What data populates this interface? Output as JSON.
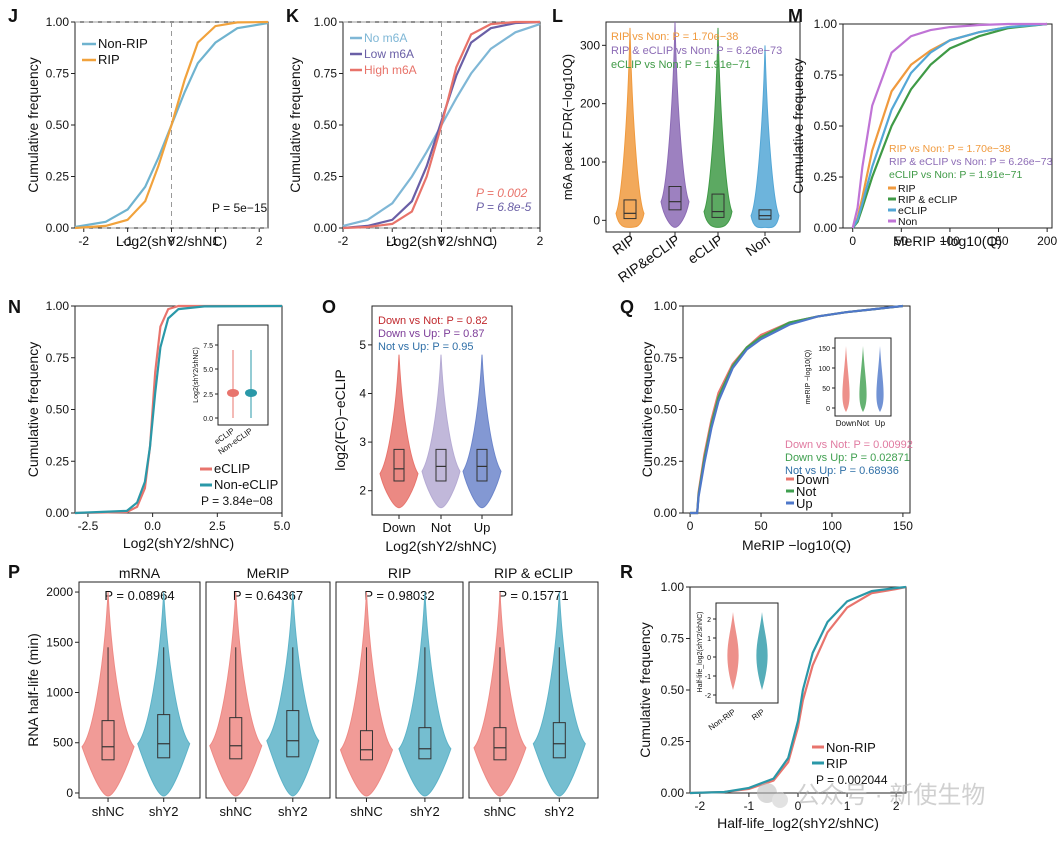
{
  "colors": {
    "nonrip": "#6fb3cf",
    "rip": "#f1a23c",
    "nom6a": "#7fb7d6",
    "lowm6a": "#6a5fa6",
    "highm6a": "#e8736a",
    "lorange": "#f09a3e",
    "lpurple": "#8c6bb5",
    "lgreen": "#3f9a46",
    "lblue": "#54a7d6",
    "red": "#e8746d",
    "teal": "#2a98a8",
    "violet": "#b6abd4",
    "bluev": "#6d86cb",
    "qgreen": "#3f9f4f",
    "qblue": "#4e77c9",
    "vred": "#ee8a85",
    "vteal": "#5db3c8",
    "pink": "#e07aa0",
    "darkred": "#c0282d",
    "purple": "#7c3c98",
    "steel": "#2f6fa7"
  },
  "watermark": "公众号 · 新使生物",
  "chart_data": [
    {
      "panel": "J",
      "type": "line",
      "title": "",
      "xlabel": "Log2(shY2/shNC)",
      "ylabel": "Cumulative frequency",
      "xlim": [
        -2.2,
        2.2
      ],
      "ylim": [
        0,
        1
      ],
      "xticks": [
        "-2",
        "-1",
        "0",
        "1",
        "2"
      ],
      "yticks": [
        "0.00",
        "0.25",
        "0.50",
        "0.75",
        "1.00"
      ],
      "series": [
        {
          "name": "Non-RIP",
          "color": "#6fb3cf",
          "x": [
            -2.2,
            -1.5,
            -1,
            -0.6,
            -0.3,
            0,
            0.3,
            0.6,
            1,
            1.5,
            2.2
          ],
          "y": [
            0.005,
            0.03,
            0.09,
            0.2,
            0.34,
            0.5,
            0.66,
            0.8,
            0.9,
            0.97,
            0.995
          ]
        },
        {
          "name": "RIP",
          "color": "#f1a23c",
          "x": [
            -2.2,
            -1.5,
            -1,
            -0.6,
            -0.3,
            0,
            0.3,
            0.6,
            1,
            1.5,
            2.2
          ],
          "y": [
            0.0,
            0.01,
            0.04,
            0.13,
            0.3,
            0.5,
            0.72,
            0.9,
            0.98,
            0.998,
            1.0
          ]
        }
      ],
      "annotation": "P = 5e−15"
    },
    {
      "panel": "K",
      "type": "line",
      "title": "",
      "xlabel": "Log2(shY2/shNC)",
      "ylabel": "Cumulative frequency",
      "xlim": [
        -2,
        2
      ],
      "ylim": [
        0,
        1
      ],
      "xticks": [
        "-2",
        "-1",
        "0",
        "1",
        "2"
      ],
      "yticks": [
        "0.00",
        "0.25",
        "0.50",
        "0.75",
        "1.00"
      ],
      "series": [
        {
          "name": "No m6A",
          "color": "#7fb7d6",
          "x": [
            -2,
            -1.5,
            -1,
            -0.6,
            -0.3,
            0,
            0.3,
            0.6,
            1,
            1.5,
            2
          ],
          "y": [
            0.01,
            0.04,
            0.12,
            0.25,
            0.37,
            0.5,
            0.63,
            0.75,
            0.87,
            0.95,
            0.99
          ]
        },
        {
          "name": "Low m6A",
          "color": "#6a5fa6",
          "x": [
            -2,
            -1.5,
            -1,
            -0.6,
            -0.3,
            0,
            0.3,
            0.6,
            1,
            1.5,
            2
          ],
          "y": [
            0.0,
            0.01,
            0.04,
            0.13,
            0.3,
            0.52,
            0.74,
            0.9,
            0.97,
            0.995,
            1.0
          ]
        },
        {
          "name": "High m6A",
          "color": "#e8736a",
          "x": [
            -2,
            -1.5,
            -1,
            -0.6,
            -0.3,
            0,
            0.3,
            0.6,
            1,
            1.5,
            2
          ],
          "y": [
            0.0,
            0.005,
            0.02,
            0.08,
            0.25,
            0.5,
            0.78,
            0.94,
            0.99,
            1.0,
            1.0
          ]
        }
      ],
      "annotations": [
        "P = 0.002",
        "P = 6.8e-5"
      ]
    },
    {
      "panel": "L",
      "type": "violin",
      "title": "",
      "xlabel": "",
      "ylabel": "m6A peak FDR(−log10Q)",
      "ylim": [
        -20,
        340
      ],
      "yticks": [
        "0",
        "100",
        "200",
        "300"
      ],
      "categories": [
        "RIP",
        "RIP&eCLIP",
        "eCLIP",
        "Non"
      ],
      "medians": [
        12,
        32,
        15,
        8
      ],
      "q1": [
        3,
        18,
        5,
        2
      ],
      "q3": [
        35,
        58,
        45,
        18
      ],
      "max": [
        330,
        340,
        330,
        300
      ],
      "series_colors": [
        "#f09a3e",
        "#8c6bb5",
        "#3f9a46",
        "#54a7d6"
      ],
      "annotations": [
        "RIP vs Non: P = 1.70e−38",
        "RIP & eCLIP vs Non: P = 6.26e−73",
        "eCLIP vs Non: P = 1.91e−71"
      ]
    },
    {
      "panel": "M",
      "type": "line",
      "title": "",
      "xlabel": "MeRIP −log10(Q)",
      "ylabel": "Cumulative frequency",
      "xlim": [
        -10,
        205
      ],
      "ylim": [
        0,
        1
      ],
      "xticks": [
        "0",
        "50",
        "100",
        "150",
        "200"
      ],
      "yticks": [
        "0.00",
        "0.25",
        "0.50",
        "0.75",
        "1.00"
      ],
      "series": [
        {
          "name": "RIP",
          "color": "#f09a3e",
          "x": [
            0,
            5,
            10,
            20,
            40,
            60,
            80,
            100,
            130,
            160,
            200
          ],
          "y": [
            0,
            0.05,
            0.15,
            0.38,
            0.67,
            0.8,
            0.87,
            0.92,
            0.96,
            0.985,
            1.0
          ]
        },
        {
          "name": "RIP & eCLIP",
          "color": "#3f9a46",
          "x": [
            0,
            5,
            10,
            20,
            40,
            60,
            80,
            100,
            130,
            160,
            200
          ],
          "y": [
            0,
            0.03,
            0.1,
            0.25,
            0.5,
            0.68,
            0.8,
            0.88,
            0.94,
            0.98,
            1.0
          ]
        },
        {
          "name": "eCLIP",
          "color": "#54a7d6",
          "x": [
            0,
            5,
            10,
            20,
            40,
            60,
            80,
            100,
            130,
            160,
            200
          ],
          "y": [
            0,
            0.04,
            0.12,
            0.3,
            0.58,
            0.76,
            0.86,
            0.92,
            0.96,
            0.985,
            1.0
          ]
        },
        {
          "name": "Non",
          "color": "#c074d6",
          "x": [
            0,
            5,
            10,
            20,
            40,
            60,
            80,
            100,
            130,
            160,
            200
          ],
          "y": [
            0,
            0.1,
            0.3,
            0.6,
            0.86,
            0.94,
            0.97,
            0.985,
            0.995,
            1.0,
            1.0
          ]
        }
      ],
      "annotations": [
        "RIP vs Non: P = 1.70e−38",
        "RIP & eCLIP vs Non: P = 6.26e−73",
        "eCLIP vs Non: P = 1.91e−71"
      ]
    },
    {
      "panel": "N",
      "type": "line",
      "title": "",
      "xlabel": "Log2(shY2/shNC)",
      "ylabel": "Cumulative frequency",
      "xlim": [
        -3,
        5
      ],
      "ylim": [
        0,
        1
      ],
      "xticks": [
        "-2.5",
        "0.0",
        "2.5",
        "5.0"
      ],
      "yticks": [
        "0.00",
        "0.25",
        "0.50",
        "0.75",
        "1.00"
      ],
      "series": [
        {
          "name": "eCLIP",
          "color": "#e8746d",
          "x": [
            -3,
            -1,
            -0.6,
            -0.3,
            -0.1,
            0,
            0.1,
            0.3,
            0.6,
            1,
            2,
            5
          ],
          "y": [
            0,
            0.005,
            0.03,
            0.12,
            0.32,
            0.5,
            0.68,
            0.9,
            0.985,
            1,
            1,
            1
          ]
        },
        {
          "name": "Non-eCLIP",
          "color": "#2a98a8",
          "x": [
            -3,
            -1,
            -0.6,
            -0.3,
            -0.1,
            0,
            0.1,
            0.3,
            0.6,
            1,
            2,
            5
          ],
          "y": [
            0,
            0.01,
            0.05,
            0.15,
            0.32,
            0.45,
            0.58,
            0.8,
            0.94,
            0.985,
            0.998,
            1
          ]
        }
      ],
      "inset": {
        "ylabel": "Log2(shY2/shNC)",
        "yticks": [
          "0.0",
          "2.5",
          "5.0",
          "7.5"
        ],
        "categories": [
          "eCLIP",
          "Non-eCLIP"
        ]
      },
      "annotation": "P = 3.84e−08"
    },
    {
      "panel": "O",
      "type": "violin",
      "title": "",
      "xlabel": "Log2(shY2/shNC)",
      "ylabel": "log2(FC)−eCLIP",
      "ylim": [
        1.5,
        5.8
      ],
      "yticks": [
        "2",
        "3",
        "4",
        "5"
      ],
      "categories": [
        "Down",
        "Not",
        "Up"
      ],
      "medians": [
        2.45,
        2.5,
        2.5
      ],
      "q1": [
        2.2,
        2.2,
        2.2
      ],
      "q3": [
        2.85,
        2.85,
        2.85
      ],
      "series_colors": [
        "#e8746d",
        "#b6abd4",
        "#6d86cb"
      ],
      "annotations": [
        "Down vs Not: P = 0.82",
        "Down vs Up: P = 0.87",
        "Not vs Up: P = 0.95"
      ]
    },
    {
      "panel": "Q",
      "type": "line",
      "title": "",
      "xlabel": "MeRIP −log10(Q)",
      "ylabel": "Cumulative frequency",
      "xlim": [
        -5,
        155
      ],
      "ylim": [
        0,
        1
      ],
      "xticks": [
        "0",
        "50",
        "100",
        "150"
      ],
      "yticks": [
        "0.00",
        "0.25",
        "0.50",
        "0.75",
        "1.00"
      ],
      "series": [
        {
          "name": "Down",
          "color": "#e8746d",
          "x": [
            0,
            5,
            6,
            10,
            15,
            20,
            30,
            40,
            50,
            70,
            90,
            110,
            130,
            150
          ],
          "y": [
            0,
            0,
            0.1,
            0.28,
            0.45,
            0.58,
            0.72,
            0.8,
            0.86,
            0.92,
            0.95,
            0.97,
            0.985,
            1.0
          ]
        },
        {
          "name": "Not",
          "color": "#3f9f4f",
          "x": [
            0,
            5,
            6,
            10,
            15,
            20,
            30,
            40,
            50,
            70,
            90,
            110,
            130,
            150
          ],
          "y": [
            0,
            0,
            0.09,
            0.26,
            0.43,
            0.56,
            0.71,
            0.8,
            0.85,
            0.92,
            0.95,
            0.97,
            0.985,
            1.0
          ]
        },
        {
          "name": "Up",
          "color": "#4e77c9",
          "x": [
            0,
            5,
            6,
            10,
            15,
            20,
            30,
            40,
            50,
            70,
            90,
            110,
            130,
            150
          ],
          "y": [
            0,
            0,
            0.08,
            0.24,
            0.41,
            0.54,
            0.7,
            0.79,
            0.84,
            0.91,
            0.95,
            0.97,
            0.985,
            1.0
          ]
        }
      ],
      "inset": {
        "ylabel": "meRIP −log10(Q)",
        "yticks": [
          "0",
          "50",
          "100",
          "150"
        ],
        "categories": [
          "Down",
          "Not",
          "Up"
        ]
      },
      "annotations": [
        "Down vs Not: P = 0.00992",
        "Down vs Up: P = 0.02871",
        "Not vs Up: P = 0.68936"
      ]
    },
    {
      "panel": "P",
      "type": "violin",
      "title": "",
      "xlabel": "",
      "ylabel": "RNA half-life (min)",
      "ylim": [
        -50,
        2100
      ],
      "yticks": [
        "0",
        "500",
        "1000",
        "1500",
        "2000"
      ],
      "facets": [
        {
          "title": "mRNA",
          "p": "P = 0.08964",
          "categories": [
            "shNC",
            "shY2"
          ],
          "medians": [
            460,
            490
          ],
          "q1": [
            330,
            350
          ],
          "q3": [
            720,
            780
          ]
        },
        {
          "title": "MeRIP",
          "p": "P = 0.64367",
          "categories": [
            "shNC",
            "shY2"
          ],
          "medians": [
            470,
            520
          ],
          "q1": [
            340,
            360
          ],
          "q3": [
            750,
            820
          ]
        },
        {
          "title": "RIP",
          "p": "P = 0.98032",
          "categories": [
            "shNC",
            "shY2"
          ],
          "medians": [
            430,
            440
          ],
          "q1": [
            330,
            340
          ],
          "q3": [
            620,
            650
          ]
        },
        {
          "title": "RIP & eCLIP",
          "p": "P = 0.15771",
          "categories": [
            "shNC",
            "shY2"
          ],
          "medians": [
            450,
            490
          ],
          "q1": [
            330,
            350
          ],
          "q3": [
            650,
            700
          ]
        }
      ],
      "series_colors": [
        "#ee8a85",
        "#5db3c8"
      ]
    },
    {
      "panel": "R",
      "type": "line",
      "title": "",
      "xlabel": "Half-life_log2(shY2/shNC)",
      "ylabel": "Cumulative frequency",
      "xlim": [
        -2.2,
        2.2
      ],
      "ylim": [
        0,
        1
      ],
      "xticks": [
        "-2",
        "-1",
        "0",
        "1",
        "2"
      ],
      "yticks": [
        "0.00",
        "0.25",
        "0.50",
        "0.75",
        "1.00"
      ],
      "series": [
        {
          "name": "Non-RIP",
          "color": "#e8746d",
          "x": [
            -2.2,
            -1.5,
            -1,
            -0.5,
            -0.2,
            0,
            0.1,
            0.3,
            0.6,
            1,
            1.5,
            2,
            2.2
          ],
          "y": [
            0,
            0.005,
            0.02,
            0.06,
            0.15,
            0.32,
            0.45,
            0.62,
            0.78,
            0.9,
            0.97,
            0.99,
            1.0
          ]
        },
        {
          "name": "RIP",
          "color": "#2a98a8",
          "x": [
            -2.2,
            -1.5,
            -1,
            -0.5,
            -0.2,
            0,
            0.1,
            0.3,
            0.6,
            1,
            1.5,
            2,
            2.2
          ],
          "y": [
            0,
            0.005,
            0.025,
            0.07,
            0.17,
            0.35,
            0.5,
            0.68,
            0.83,
            0.93,
            0.98,
            0.995,
            1.0
          ]
        }
      ],
      "inset": {
        "ylabel": "Half-life_log2(shY2/shNC)",
        "yticks": [
          "-2",
          "-1",
          "0",
          "1",
          "2"
        ],
        "categories": [
          "Non-RIP",
          "RIP"
        ]
      },
      "annotation": "P = 0.002044"
    }
  ]
}
